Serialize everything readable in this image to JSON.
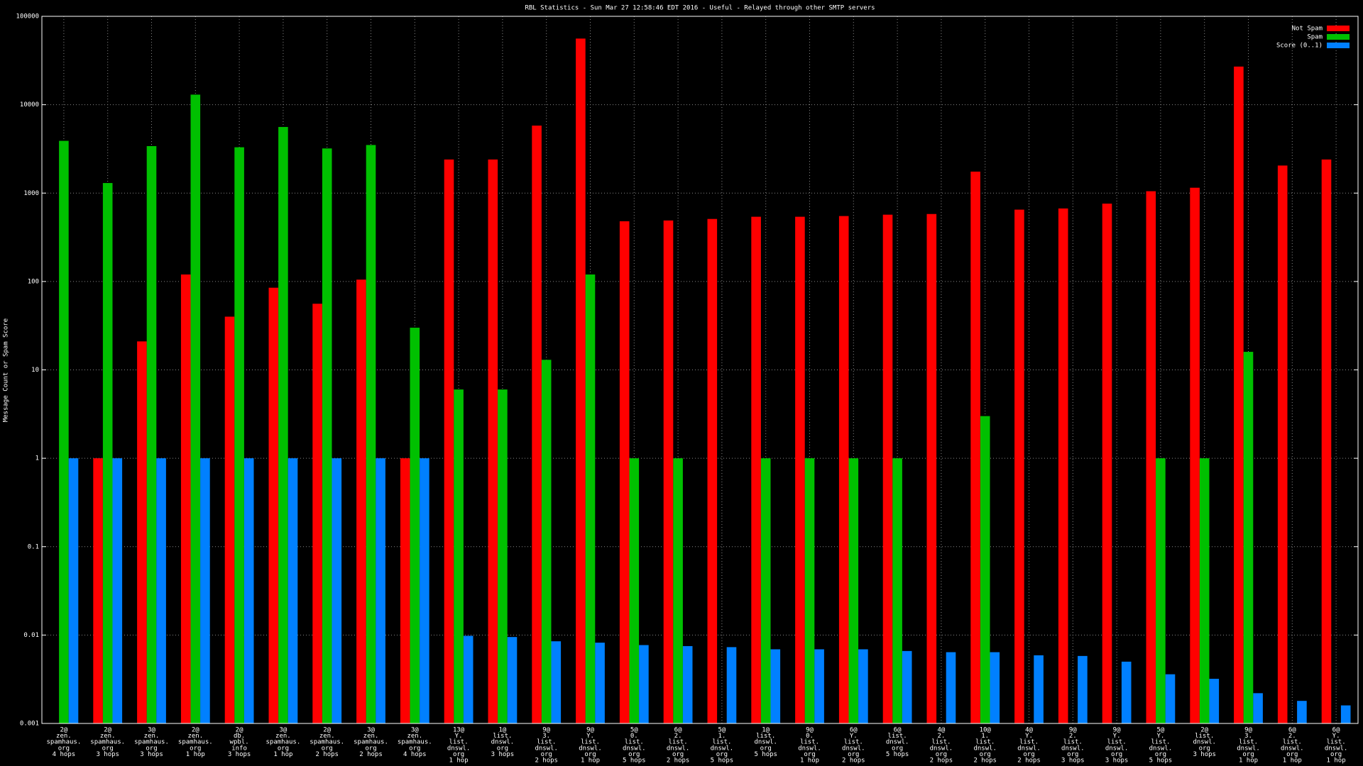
{
  "chart_data": {
    "type": "bar",
    "title": "RBL Statistics - Sun Mar 27 12:58:46 EDT 2016 - Useful - Relayed through other SMTP servers",
    "y_label": "Message Count or Spam Score",
    "ylog": true,
    "grid": true,
    "legend": "top-right",
    "ylim": [
      0.001,
      100000
    ],
    "yticks": [
      0.001,
      0.01,
      0.1,
      1,
      10,
      100,
      1000,
      10000,
      100000
    ],
    "categories": [
      [
        "2@",
        "zen.",
        "spamhaus.",
        "org",
        "4 hops"
      ],
      [
        "2@",
        "zen.",
        "spamhaus.",
        "org",
        "3 hops"
      ],
      [
        "3@",
        "zen.",
        "spamhaus.",
        "org",
        "3 hops"
      ],
      [
        "2@",
        "zen.",
        "spamhaus.",
        "org",
        "1 hop"
      ],
      [
        "2@",
        "db.",
        "wpbl.",
        "info",
        "3 hops"
      ],
      [
        "3@",
        "zen.",
        "spamhaus.",
        "org",
        "1 hop"
      ],
      [
        "2@",
        "zen.",
        "spamhaus.",
        "org",
        "2 hops"
      ],
      [
        "3@",
        "zen.",
        "spamhaus.",
        "org",
        "2 hops"
      ],
      [
        "3@",
        "zen.",
        "spamhaus.",
        "org",
        "4 hops"
      ],
      [
        "13@",
        "Y.",
        "list.",
        "dnswl.",
        "org",
        "1 hop"
      ],
      [
        "1@",
        "list.",
        "dnswl.",
        "org",
        "3 hops"
      ],
      [
        "9@",
        "3.",
        "list.",
        "dnswl.",
        "org",
        "2 hops"
      ],
      [
        "9@",
        "Y.",
        "list.",
        "dnswl.",
        "org",
        "1 hop"
      ],
      [
        "5@",
        "0.",
        "list.",
        "dnswl.",
        "org",
        "5 hops"
      ],
      [
        "6@",
        "2.",
        "list.",
        "dnswl.",
        "org",
        "2 hops"
      ],
      [
        "5@",
        "1.",
        "list.",
        "dnswl.",
        "org",
        "5 hops"
      ],
      [
        "1@",
        "list.",
        "dnswl.",
        "org",
        "5 hops"
      ],
      [
        "9@",
        "0.",
        "list.",
        "dnswl.",
        "org",
        "1 hop"
      ],
      [
        "6@",
        "Y.",
        "list.",
        "dnswl.",
        "org",
        "2 hops"
      ],
      [
        "6@",
        "list.",
        "dnswl.",
        "org",
        "5 hops"
      ],
      [
        "4@",
        "2.",
        "list.",
        "dnswl.",
        "org",
        "2 hops"
      ],
      [
        "10@",
        "1.",
        "list.",
        "dnswl.",
        "org",
        "2 hops"
      ],
      [
        "4@",
        "Y.",
        "list.",
        "dnswl.",
        "org",
        "2 hops"
      ],
      [
        "9@",
        "2.",
        "list.",
        "dnswl.",
        "org",
        "3 hops"
      ],
      [
        "9@",
        "Y.",
        "list.",
        "dnswl.",
        "org",
        "3 hops"
      ],
      [
        "5@",
        "Y.",
        "list.",
        "dnswl.",
        "org",
        "5 hops"
      ],
      [
        "2@",
        "list.",
        "dnswl.",
        "org",
        "3 hops"
      ],
      [
        "9@",
        "3.",
        "list.",
        "dnswl.",
        "org",
        "1 hop"
      ],
      [
        "6@",
        "2.",
        "list.",
        "dnswl.",
        "org",
        "1 hop"
      ],
      [
        "6@",
        "Y.",
        "list.",
        "dnswl.",
        "org",
        "1 hop"
      ]
    ],
    "series": [
      {
        "name": "Not Spam",
        "color": "#ff0000",
        "values": [
          null,
          1,
          21,
          120,
          40,
          85,
          56,
          105,
          1,
          2400,
          2400,
          5800,
          56000,
          480,
          490,
          510,
          540,
          540,
          550,
          570,
          580,
          1750,
          650,
          670,
          760,
          1050,
          1150,
          27000,
          2050,
          2400
        ]
      },
      {
        "name": "Spam",
        "color": "#00c000",
        "values": [
          3900,
          1300,
          3400,
          13000,
          3300,
          5600,
          3200,
          3500,
          30,
          6,
          6,
          13,
          120,
          1,
          1,
          null,
          1,
          1,
          1,
          1,
          null,
          3,
          null,
          null,
          null,
          1,
          1,
          16,
          null,
          null
        ]
      },
      {
        "name": "Score (0..1)",
        "color": "#0080ff",
        "values": [
          1,
          1,
          1,
          1,
          1,
          1,
          1,
          1,
          1,
          0.0098,
          0.0095,
          0.0085,
          0.0082,
          0.0077,
          0.0075,
          0.0073,
          0.0069,
          0.0069,
          0.0069,
          0.0066,
          0.0064,
          0.0064,
          0.0059,
          0.0058,
          0.005,
          0.0036,
          0.0032,
          0.0022,
          0.0018,
          0.0016
        ]
      }
    ]
  }
}
